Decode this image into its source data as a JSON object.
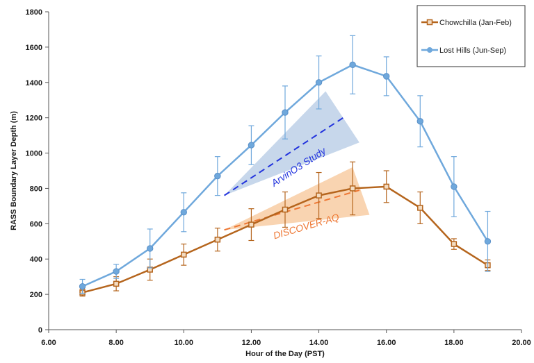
{
  "chart_data": {
    "type": "line",
    "title": "",
    "xlabel": "Hour of the Day  (PST)",
    "ylabel": "RASS Boundary Layer Depth  (m)",
    "xlim": [
      6,
      20
    ],
    "ylim": [
      0,
      1800
    ],
    "x_ticks": [
      6,
      8,
      10,
      12,
      14,
      16,
      18,
      20
    ],
    "x_tick_labels": [
      "6.00",
      "8.00",
      "10.00",
      "12.00",
      "14.00",
      "16.00",
      "18.00",
      "20.00"
    ],
    "y_ticks": [
      0,
      200,
      400,
      600,
      800,
      1000,
      1200,
      1400,
      1600,
      1800
    ],
    "y_tick_labels": [
      "0",
      "200",
      "400",
      "600",
      "800",
      "1000",
      "1200",
      "1400",
      "1600",
      "1800"
    ],
    "grid": false,
    "legend_position": "top-right",
    "series": [
      {
        "name": "Chowchilla (Jan-Feb)",
        "color": "#b5651d",
        "marker": "square",
        "x": [
          7,
          8,
          9,
          10,
          11,
          12,
          13,
          14,
          15,
          16,
          17,
          18,
          19
        ],
        "y": [
          210,
          260,
          340,
          425,
          510,
          595,
          680,
          760,
          800,
          810,
          690,
          485,
          365
        ],
        "err_lo": [
          20,
          40,
          60,
          60,
          65,
          90,
          100,
          130,
          150,
          90,
          90,
          30,
          30
        ],
        "err_hi": [
          20,
          40,
          60,
          60,
          65,
          90,
          100,
          130,
          150,
          90,
          90,
          30,
          30
        ]
      },
      {
        "name": "Lost Hills (Jun-Sep)",
        "color": "#6fa8dc",
        "marker": "circle",
        "x": [
          7,
          8,
          9,
          10,
          11,
          12,
          13,
          14,
          15,
          16,
          17,
          18,
          19
        ],
        "y": [
          245,
          330,
          460,
          665,
          870,
          1045,
          1230,
          1400,
          1500,
          1435,
          1180,
          810,
          500
        ],
        "err_lo": [
          40,
          40,
          110,
          110,
          110,
          110,
          150,
          150,
          165,
          110,
          145,
          170,
          170
        ],
        "err_hi": [
          40,
          40,
          110,
          110,
          110,
          110,
          150,
          150,
          165,
          110,
          145,
          170,
          170
        ]
      }
    ],
    "annotations": [
      {
        "text": "ArvinO3 Study",
        "color": "#2233dd",
        "fill_color": "#b9cde6",
        "trend_start": [
          11.2,
          760
        ],
        "trend_end": [
          14.8,
          1210
        ],
        "band": [
          [
            11.2,
            760
          ],
          [
            14.2,
            1350
          ],
          [
            15.2,
            1060
          ]
        ]
      },
      {
        "text": "DISCOVER-AQ",
        "color": "#ee7733",
        "fill_color": "#f7c99e",
        "trend_start": [
          11.2,
          565
        ],
        "trend_end": [
          15.2,
          790
        ],
        "band": [
          [
            11.2,
            565
          ],
          [
            15,
            920
          ],
          [
            15.5,
            650
          ]
        ]
      }
    ]
  }
}
